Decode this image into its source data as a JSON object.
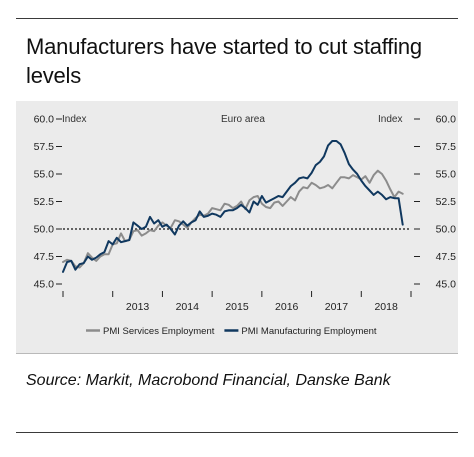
{
  "title": "Manufacturers have started to cut staffing levels",
  "source": "Source: Markit, Macrobond Financial, Danske Bank",
  "chart_data": {
    "type": "line",
    "subtitle": "Euro area",
    "left_axis_label": "Index",
    "right_axis_label": "Index",
    "ylim": [
      45.0,
      60.0
    ],
    "yticks": [
      "60.0",
      "57.5",
      "55.0",
      "52.5",
      "50.0",
      "47.5",
      "45.0"
    ],
    "xlim": [
      2012.0,
      2019.0
    ],
    "xticks": [
      "2013",
      "2014",
      "2015",
      "2016",
      "2017",
      "2018"
    ],
    "reference_line": 50.0,
    "legend_position": "bottom",
    "series": [
      {
        "name": "PMI Services Employment",
        "color": "#8c8c8c",
        "x": [
          2012.0,
          2012.083,
          2012.167,
          2012.25,
          2012.333,
          2012.417,
          2012.5,
          2012.583,
          2012.667,
          2012.75,
          2012.833,
          2012.917,
          2013.0,
          2013.083,
          2013.167,
          2013.25,
          2013.333,
          2013.417,
          2013.5,
          2013.583,
          2013.667,
          2013.75,
          2013.833,
          2013.917,
          2014.0,
          2014.083,
          2014.167,
          2014.25,
          2014.333,
          2014.417,
          2014.5,
          2014.583,
          2014.667,
          2014.75,
          2014.833,
          2014.917,
          2015.0,
          2015.083,
          2015.167,
          2015.25,
          2015.333,
          2015.417,
          2015.5,
          2015.583,
          2015.667,
          2015.75,
          2015.833,
          2015.917,
          2016.0,
          2016.083,
          2016.167,
          2016.25,
          2016.333,
          2016.417,
          2016.5,
          2016.583,
          2016.667,
          2016.75,
          2016.833,
          2016.917,
          2017.0,
          2017.083,
          2017.167,
          2017.25,
          2017.333,
          2017.417,
          2017.5,
          2017.583,
          2017.667,
          2017.75,
          2017.833,
          2017.917,
          2018.0,
          2018.083,
          2018.167,
          2018.25,
          2018.333,
          2018.417,
          2018.5,
          2018.583,
          2018.667,
          2018.75,
          2018.833
        ],
        "values": [
          47.0,
          47.2,
          47.1,
          46.6,
          46.5,
          46.9,
          47.8,
          47.4,
          47.1,
          47.5,
          47.7,
          47.7,
          48.6,
          48.7,
          49.6,
          48.9,
          49.0,
          49.8,
          49.9,
          49.4,
          49.6,
          49.9,
          49.8,
          50.3,
          50.6,
          50.3,
          50.1,
          50.8,
          50.7,
          50.4,
          50.1,
          50.6,
          51.0,
          51.3,
          51.2,
          51.4,
          51.9,
          51.8,
          51.7,
          52.3,
          52.2,
          51.9,
          52.1,
          52.5,
          51.8,
          52.6,
          52.9,
          53.0,
          52.3,
          52.0,
          51.9,
          52.4,
          52.5,
          52.1,
          52.5,
          52.9,
          52.6,
          53.4,
          53.8,
          53.7,
          54.2,
          54.0,
          53.7,
          53.8,
          54.0,
          53.7,
          54.2,
          54.7,
          54.7,
          54.6,
          54.9,
          54.7,
          54.5,
          54.8,
          54.2,
          54.9,
          55.3,
          55.0,
          54.4,
          53.6,
          52.9,
          53.4,
          53.2
        ]
      },
      {
        "name": "PMI Manufacturing Employment",
        "color": "#10385f",
        "x": [
          2012.0,
          2012.083,
          2012.167,
          2012.25,
          2012.333,
          2012.417,
          2012.5,
          2012.583,
          2012.667,
          2012.75,
          2012.833,
          2012.917,
          2013.0,
          2013.083,
          2013.167,
          2013.25,
          2013.333,
          2013.417,
          2013.5,
          2013.583,
          2013.667,
          2013.75,
          2013.833,
          2013.917,
          2014.0,
          2014.083,
          2014.167,
          2014.25,
          2014.333,
          2014.417,
          2014.5,
          2014.583,
          2014.667,
          2014.75,
          2014.833,
          2014.917,
          2015.0,
          2015.083,
          2015.167,
          2015.25,
          2015.333,
          2015.417,
          2015.5,
          2015.583,
          2015.667,
          2015.75,
          2015.833,
          2015.917,
          2016.0,
          2016.083,
          2016.167,
          2016.25,
          2016.333,
          2016.417,
          2016.5,
          2016.583,
          2016.667,
          2016.75,
          2016.833,
          2016.917,
          2017.0,
          2017.083,
          2017.167,
          2017.25,
          2017.333,
          2017.417,
          2017.5,
          2017.583,
          2017.667,
          2017.75,
          2017.833,
          2017.917,
          2018.0,
          2018.083,
          2018.167,
          2018.25,
          2018.333,
          2018.417,
          2018.5,
          2018.583,
          2018.667,
          2018.75,
          2018.833
        ],
        "values": [
          46.1,
          47.0,
          47.1,
          46.3,
          46.8,
          46.9,
          47.5,
          47.2,
          47.4,
          47.7,
          47.9,
          48.9,
          48.6,
          49.2,
          48.8,
          48.9,
          49.0,
          50.6,
          50.3,
          50.0,
          50.2,
          51.1,
          50.5,
          50.8,
          50.2,
          50.4,
          50.0,
          49.5,
          50.3,
          50.7,
          50.3,
          50.6,
          50.8,
          51.6,
          51.1,
          51.2,
          51.4,
          51.3,
          51.1,
          51.6,
          51.7,
          51.7,
          51.9,
          52.2,
          51.9,
          51.5,
          52.5,
          52.2,
          53.0,
          52.4,
          52.6,
          52.8,
          53.0,
          52.9,
          53.4,
          53.9,
          54.2,
          54.6,
          54.7,
          54.6,
          55.1,
          55.8,
          56.1,
          56.6,
          57.6,
          58.0,
          58.0,
          57.7,
          56.9,
          55.9,
          55.4,
          55.0,
          54.4,
          53.9,
          53.5,
          53.1,
          53.4,
          53.1,
          52.7,
          52.9,
          52.8,
          52.8,
          50.4
        ]
      }
    ]
  }
}
